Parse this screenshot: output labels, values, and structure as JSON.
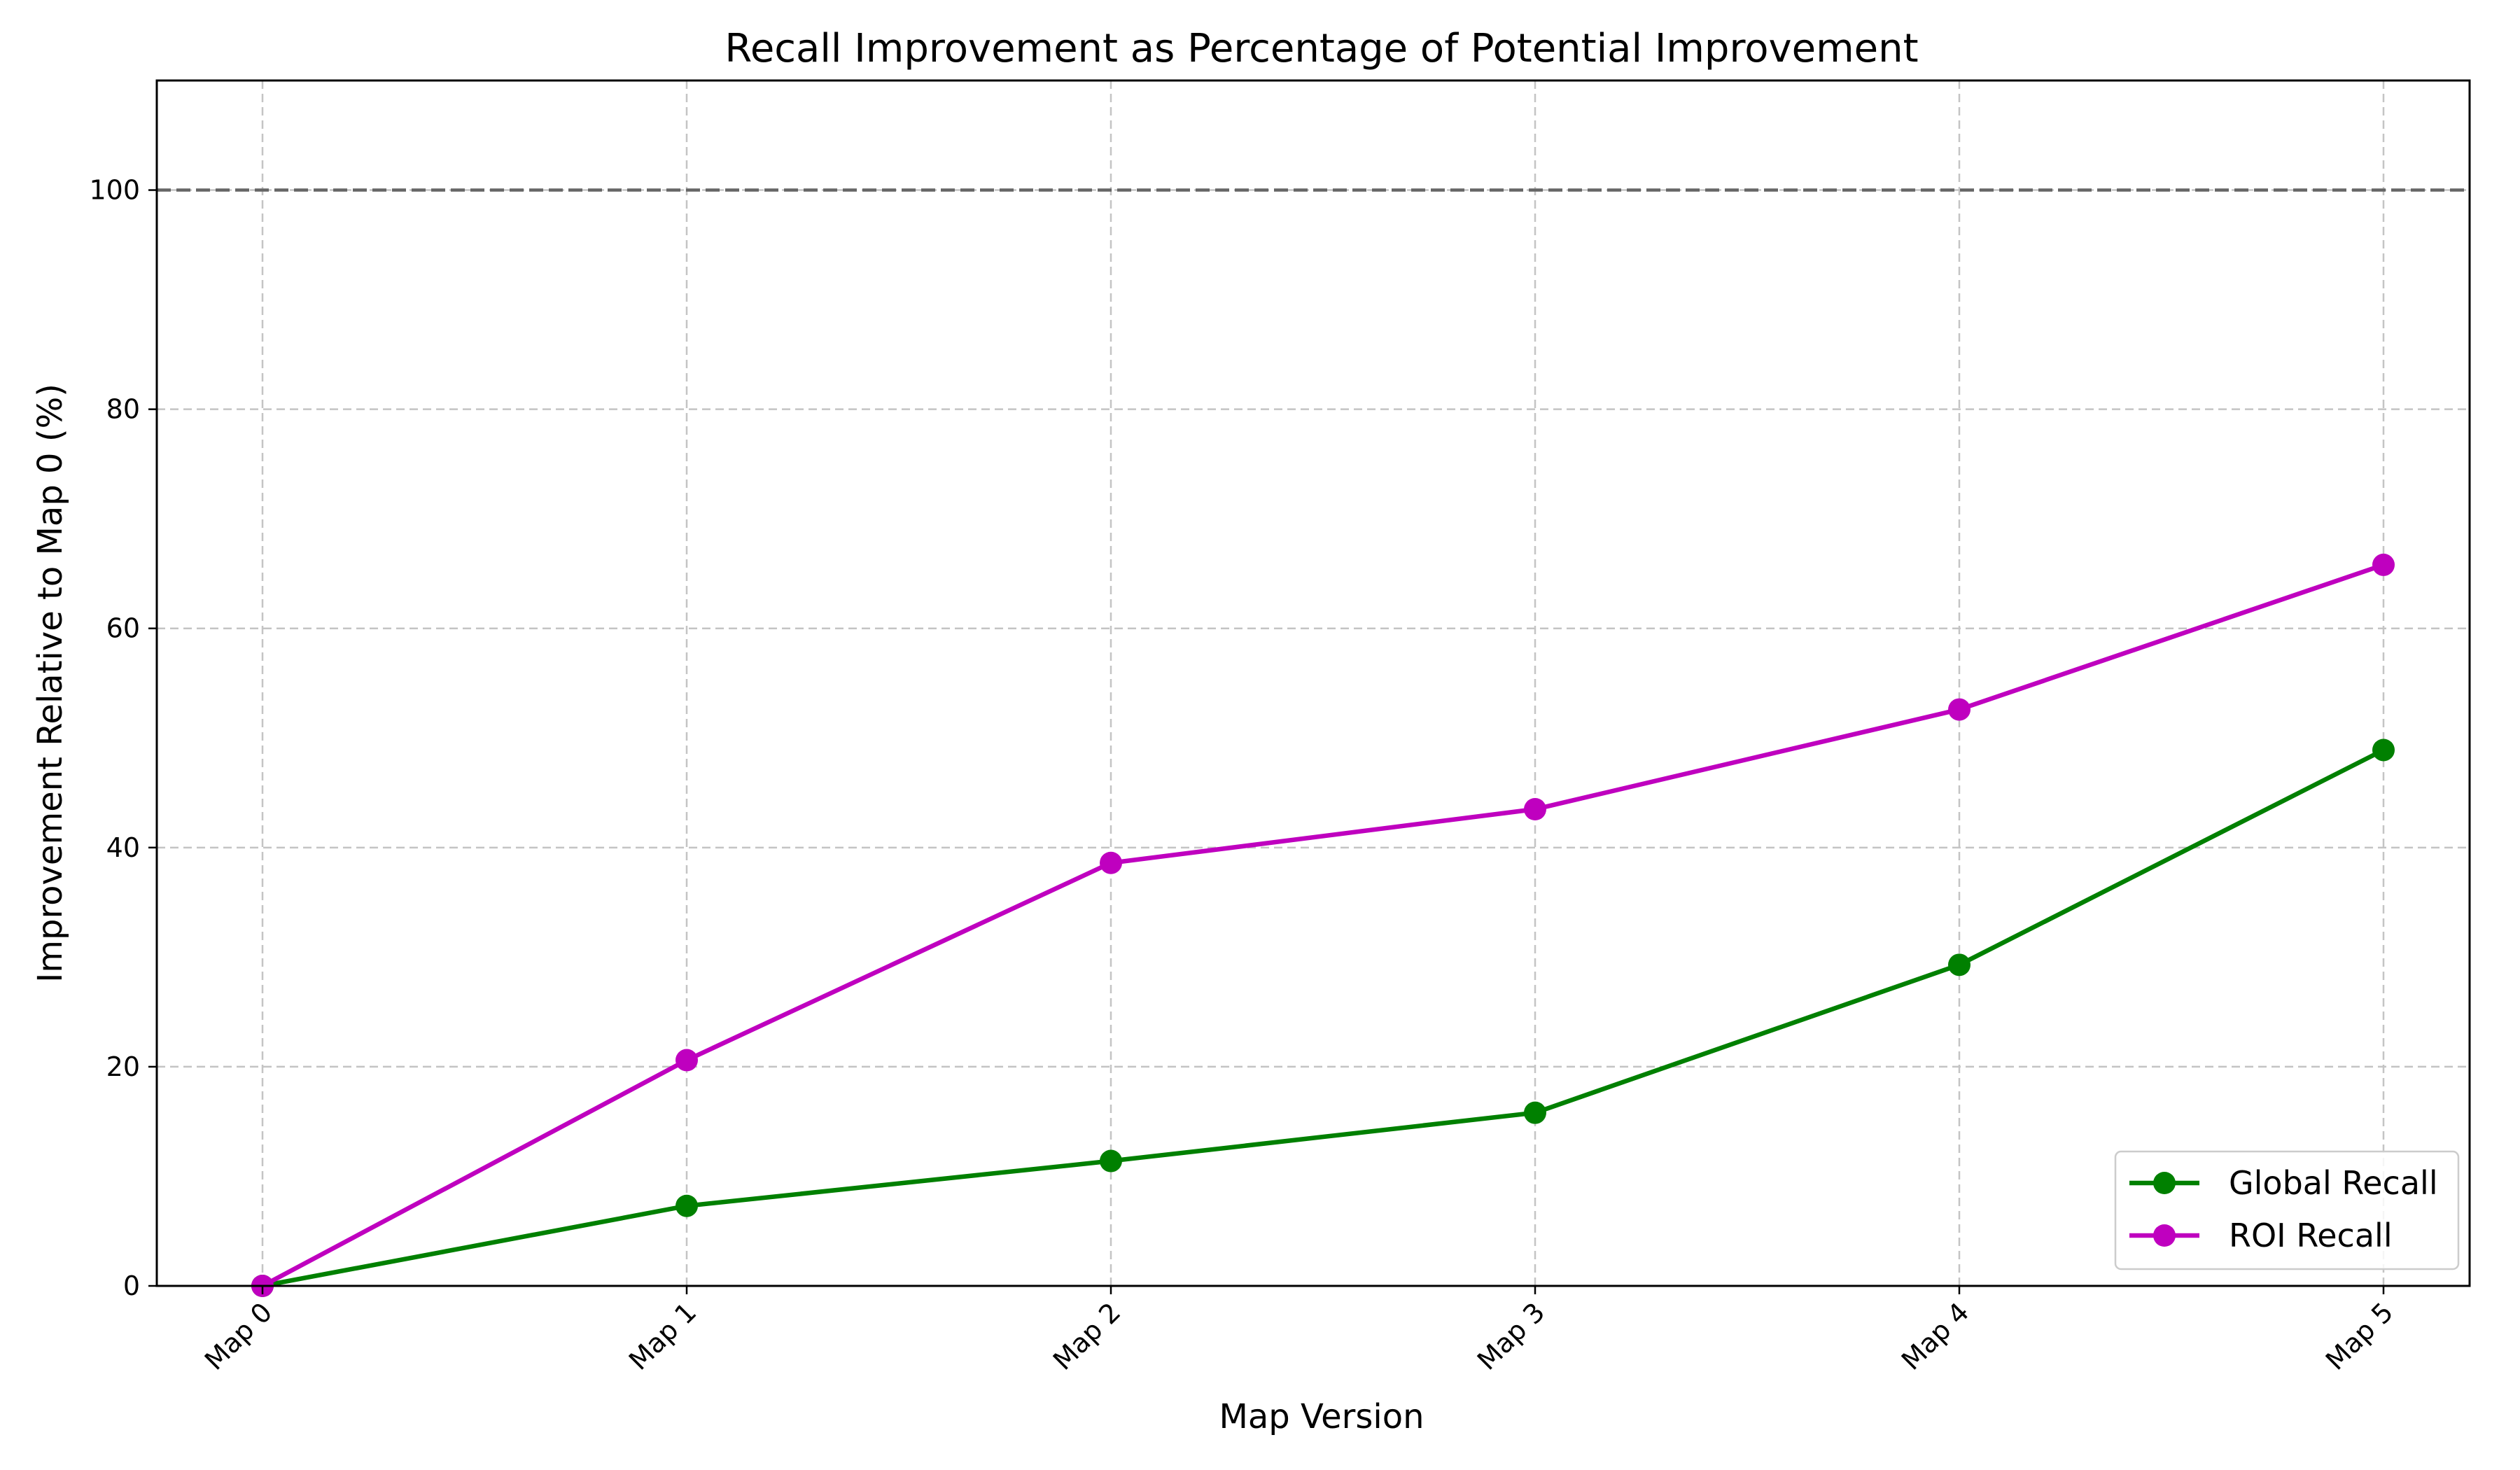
{
  "chart_data": {
    "type": "line",
    "title": "Recall Improvement as Percentage of Potential Improvement",
    "xlabel": "Map Version",
    "ylabel": "Improvement Relative to Map 0 (%)",
    "categories": [
      "Map 0",
      "Map 1",
      "Map 2",
      "Map 3",
      "Map 4",
      "Map 5"
    ],
    "series": [
      {
        "name": "Global Recall",
        "color": "#008000",
        "values": [
          0,
          7.3,
          11.4,
          15.8,
          29.3,
          48.9
        ]
      },
      {
        "name": "ROI Recall",
        "color": "#bf00bf",
        "values": [
          0,
          20.6,
          38.6,
          43.5,
          52.6,
          65.8
        ]
      }
    ],
    "ylim": [
      0,
      110
    ],
    "yticks": [
      0,
      20,
      40,
      60,
      80,
      100
    ],
    "reference_line": {
      "y": 100,
      "style": "dashed",
      "color": "#666666"
    },
    "grid": true,
    "legend_position": "lower-right"
  }
}
